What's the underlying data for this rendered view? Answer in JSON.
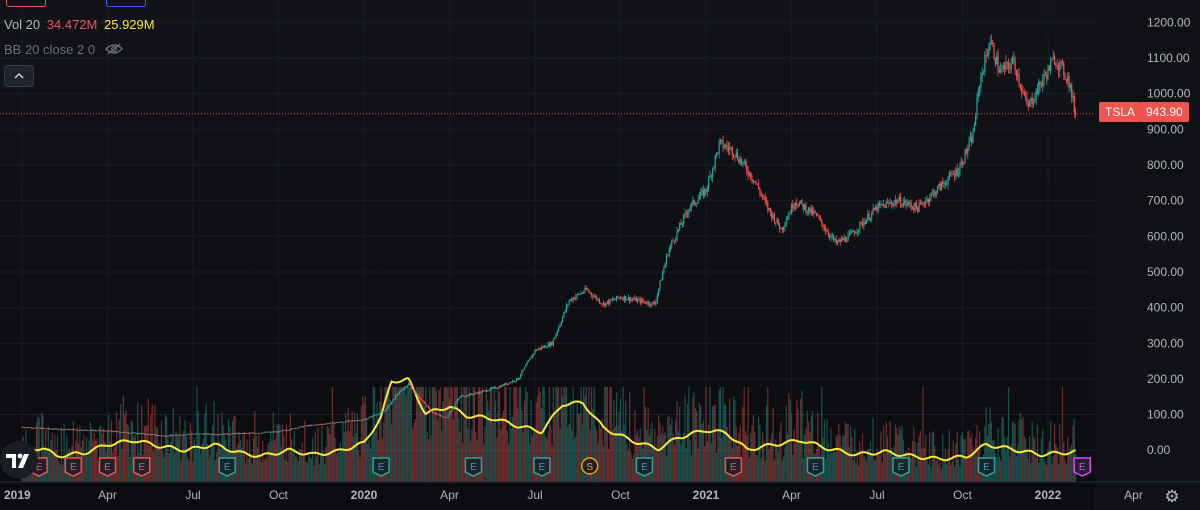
{
  "legend": {
    "top_left_pill": "",
    "top_right_pill": "",
    "vol_label": "Vol 20",
    "vol_value": "34.472M",
    "vol_ma": "25.929M",
    "bb_label": "BB 20 close 2 0",
    "eye_icon": "eye-crossed-icon",
    "collapse_icon": "chevron-up-icon"
  },
  "symbol": {
    "ticker": "TSLA",
    "last_price": "943.90"
  },
  "colors": {
    "up": "#26a69a",
    "down": "#ef5350",
    "volume_ma": "#f5e83a",
    "earnings": "#ef5350",
    "earnings_up": "#26a69a",
    "split": "#ff9800",
    "future_earnings": "#e040fb"
  },
  "icons": {
    "logo": "tradingview-logo-icon",
    "settings": "gear-icon"
  },
  "chart_data": {
    "type": "candlestick",
    "title": "",
    "xlabel": "",
    "ylabel": "",
    "ylim": [
      -45,
      1270
    ],
    "yticks": [
      "1200.00",
      "1100.00",
      "1000.00",
      "900.00",
      "800.00",
      "700.00",
      "600.00",
      "500.00",
      "400.00",
      "300.00",
      "200.00",
      "100.00",
      "0.00"
    ],
    "ytick_values": [
      1200,
      1100,
      1000,
      900,
      800,
      700,
      600,
      500,
      400,
      300,
      200,
      100,
      0
    ],
    "xticks": [
      {
        "label": "2019",
        "t": 2019.0,
        "bold": true
      },
      {
        "label": "Apr",
        "t": 2019.25
      },
      {
        "label": "Jul",
        "t": 2019.5
      },
      {
        "label": "Oct",
        "t": 2019.75
      },
      {
        "label": "2020",
        "t": 2020.0,
        "bold": true
      },
      {
        "label": "Apr",
        "t": 2020.25
      },
      {
        "label": "Jul",
        "t": 2020.5
      },
      {
        "label": "Oct",
        "t": 2020.75
      },
      {
        "label": "2021",
        "t": 2021.0,
        "bold": true
      },
      {
        "label": "Apr",
        "t": 2021.25
      },
      {
        "label": "Jul",
        "t": 2021.5
      },
      {
        "label": "Oct",
        "t": 2021.75
      },
      {
        "label": "2022",
        "t": 2022.0,
        "bold": true
      },
      {
        "label": "Apr",
        "t": 2022.25
      }
    ],
    "price_close": [
      [
        2019.0,
        65
      ],
      [
        2019.08,
        60
      ],
      [
        2019.17,
        57
      ],
      [
        2019.25,
        54
      ],
      [
        2019.33,
        48
      ],
      [
        2019.42,
        40
      ],
      [
        2019.5,
        46
      ],
      [
        2019.58,
        45
      ],
      [
        2019.67,
        48
      ],
      [
        2019.75,
        52
      ],
      [
        2019.83,
        68
      ],
      [
        2019.92,
        78
      ],
      [
        2020.0,
        86
      ],
      [
        2020.06,
        110
      ],
      [
        2020.1,
        160
      ],
      [
        2020.13,
        185
      ],
      [
        2020.16,
        150
      ],
      [
        2020.2,
        105
      ],
      [
        2020.24,
        90
      ],
      [
        2020.28,
        150
      ],
      [
        2020.33,
        160
      ],
      [
        2020.4,
        180
      ],
      [
        2020.45,
        200
      ],
      [
        2020.5,
        280
      ],
      [
        2020.55,
        300
      ],
      [
        2020.6,
        420
      ],
      [
        2020.65,
        450
      ],
      [
        2020.7,
        410
      ],
      [
        2020.75,
        430
      ],
      [
        2020.8,
        420
      ],
      [
        2020.85,
        410
      ],
      [
        2020.89,
        560
      ],
      [
        2020.95,
        680
      ],
      [
        2021.0,
        730
      ],
      [
        2021.04,
        860
      ],
      [
        2021.08,
        840
      ],
      [
        2021.14,
        760
      ],
      [
        2021.18,
        680
      ],
      [
        2021.22,
        620
      ],
      [
        2021.26,
        700
      ],
      [
        2021.32,
        660
      ],
      [
        2021.38,
        580
      ],
      [
        2021.42,
        600
      ],
      [
        2021.5,
        680
      ],
      [
        2021.56,
        700
      ],
      [
        2021.62,
        680
      ],
      [
        2021.68,
        735
      ],
      [
        2021.74,
        790
      ],
      [
        2021.78,
        880
      ],
      [
        2021.8,
        1030
      ],
      [
        2021.83,
        1150
      ],
      [
        2021.86,
        1060
      ],
      [
        2021.9,
        1090
      ],
      [
        2021.94,
        960
      ],
      [
        2021.98,
        1030
      ],
      [
        2022.02,
        1100
      ],
      [
        2022.06,
        1040
      ],
      [
        2022.08,
        943.9
      ]
    ],
    "volume_ma": [
      [
        2019.0,
        42
      ],
      [
        2019.06,
        48
      ],
      [
        2019.1,
        36
      ],
      [
        2019.18,
        40
      ],
      [
        2019.25,
        52
      ],
      [
        2019.33,
        58
      ],
      [
        2019.4,
        50
      ],
      [
        2019.48,
        44
      ],
      [
        2019.56,
        52
      ],
      [
        2019.64,
        40
      ],
      [
        2019.7,
        36
      ],
      [
        2019.78,
        44
      ],
      [
        2019.85,
        38
      ],
      [
        2019.92,
        42
      ],
      [
        2020.0,
        54
      ],
      [
        2020.05,
        90
      ],
      [
        2020.08,
        140
      ],
      [
        2020.13,
        142
      ],
      [
        2020.18,
        95
      ],
      [
        2020.25,
        105
      ],
      [
        2020.3,
        92
      ],
      [
        2020.38,
        88
      ],
      [
        2020.45,
        78
      ],
      [
        2020.52,
        70
      ],
      [
        2020.58,
        108
      ],
      [
        2020.64,
        110
      ],
      [
        2020.7,
        75
      ],
      [
        2020.78,
        58
      ],
      [
        2020.86,
        46
      ],
      [
        2020.92,
        62
      ],
      [
        2021.0,
        72
      ],
      [
        2021.06,
        68
      ],
      [
        2021.12,
        45
      ],
      [
        2021.2,
        52
      ],
      [
        2021.28,
        58
      ],
      [
        2021.36,
        46
      ],
      [
        2021.44,
        38
      ],
      [
        2021.52,
        42
      ],
      [
        2021.6,
        36
      ],
      [
        2021.68,
        32
      ],
      [
        2021.76,
        35
      ],
      [
        2021.82,
        52
      ],
      [
        2021.9,
        45
      ],
      [
        2021.98,
        38
      ],
      [
        2022.08,
        42
      ]
    ],
    "events": [
      {
        "type": "E",
        "t": 2019.05,
        "color": "#ef5350"
      },
      {
        "type": "E",
        "t": 2019.15,
        "color": "#ef5350"
      },
      {
        "type": "E",
        "t": 2019.25,
        "color": "#ef5350"
      },
      {
        "type": "E",
        "t": 2019.35,
        "color": "#ef5350"
      },
      {
        "type": "E",
        "t": 2019.6,
        "color": "#26a69a"
      },
      {
        "type": "E",
        "t": 2020.05,
        "color": "#26a69a"
      },
      {
        "type": "E",
        "t": 2020.32,
        "color": "#26a69a"
      },
      {
        "type": "E",
        "t": 2020.52,
        "color": "#26a69a"
      },
      {
        "type": "S",
        "t": 2020.66,
        "color": "#ff9800"
      },
      {
        "type": "E",
        "t": 2020.82,
        "color": "#26a69a"
      },
      {
        "type": "E",
        "t": 2021.08,
        "color": "#ef5350"
      },
      {
        "type": "E",
        "t": 2021.32,
        "color": "#26a69a"
      },
      {
        "type": "E",
        "t": 2021.57,
        "color": "#26a69a"
      },
      {
        "type": "E",
        "t": 2021.82,
        "color": "#26a69a"
      },
      {
        "type": "E",
        "t": 2022.1,
        "color": "#e040fb"
      }
    ]
  }
}
